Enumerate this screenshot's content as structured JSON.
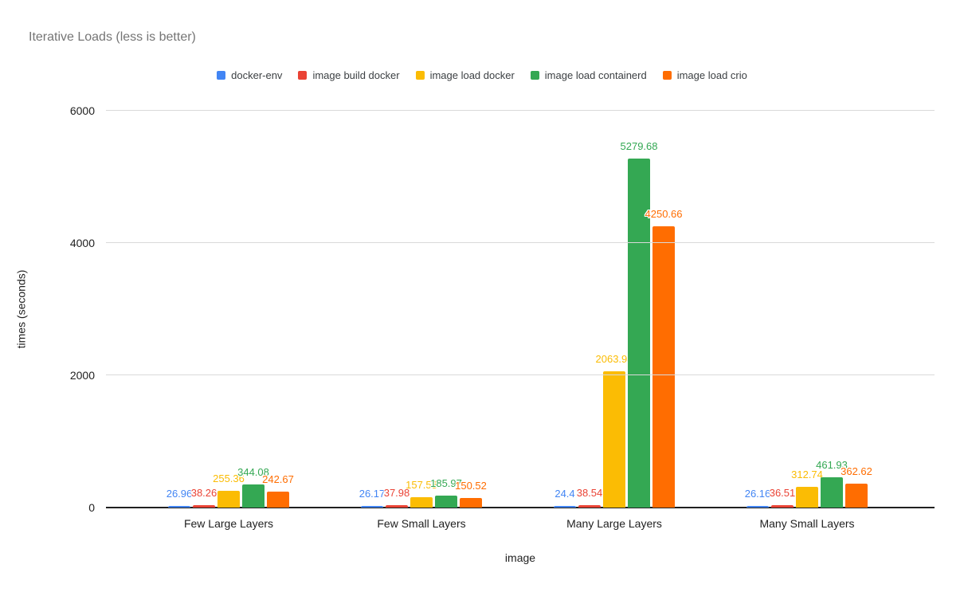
{
  "chart_data": {
    "type": "bar",
    "title": "Iterative Loads (less is better)",
    "xlabel": "image",
    "ylabel": "times (seconds)",
    "ylim": [
      0,
      6000
    ],
    "yticks": [
      0,
      2000,
      4000,
      6000
    ],
    "grid": true,
    "legend_position": "top",
    "categories": [
      "Few Large Layers",
      "Few Small Layers",
      "Many Large Layers",
      "Many Small Layers"
    ],
    "series": [
      {
        "name": "docker-env",
        "color": "#4285F4",
        "values": [
          26.96,
          26.17,
          24.4,
          26.16
        ]
      },
      {
        "name": "image build docker",
        "color": "#EA4335",
        "values": [
          38.26,
          37.98,
          38.54,
          36.51
        ]
      },
      {
        "name": "image load docker",
        "color": "#FBBC04",
        "values": [
          255.36,
          157.58,
          2063.98,
          312.74
        ]
      },
      {
        "name": "image load containerd",
        "color": "#34A853",
        "values": [
          344.08,
          185.97,
          5279.68,
          461.93
        ]
      },
      {
        "name": "image load crio",
        "color": "#FF6D01",
        "values": [
          242.67,
          150.52,
          4250.66,
          362.62
        ]
      }
    ]
  },
  "colors": {
    "background": "#ffffff",
    "title_text": "#757575",
    "axis_text": "#1f1f1f",
    "legend_text": "#3c4043",
    "gridline": "#d9d9d9",
    "baseline": "#212121"
  }
}
